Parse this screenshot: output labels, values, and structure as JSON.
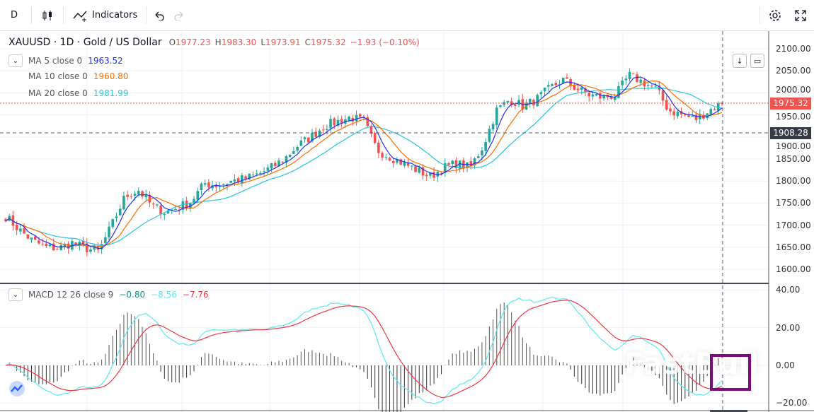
{
  "toolbar": {
    "interval": "D",
    "indicators_label": "Indicators"
  },
  "legend": {
    "symbol": "XAUUSD · 1D · Gold / US Dollar",
    "o_label": "O",
    "o": "1977.23",
    "h_label": "H",
    "h": "1983.30",
    "l_label": "L",
    "l": "1973.91",
    "c_label": "C",
    "c": "1975.32",
    "change": "−1.93 (−0.10%)",
    "ma": [
      {
        "label": "MA 5 close 0",
        "value": "1963.52",
        "color": "#2130f3"
      },
      {
        "label": "MA 10 close 0",
        "value": "1960.80",
        "color": "#ff6d00"
      },
      {
        "label": "MA 20 close 0",
        "value": "1981.99",
        "color": "#26c6da"
      }
    ],
    "macd": {
      "label": "MACD 12 26 close 9",
      "hist": "−0.80",
      "macd": "−8.56",
      "signal": "−7.76"
    }
  },
  "price_axis": {
    "ticks": [
      "2100.00",
      "2050.00",
      "2000.00",
      "1950.00",
      "1900.00",
      "1850.00",
      "1800.00",
      "1750.00",
      "1700.00",
      "1650.00",
      "1600.00"
    ],
    "last_price": "1975.32",
    "crosshair_price": "1908.28"
  },
  "macd_axis": {
    "ticks": [
      "40.00",
      "20.00",
      "0.00",
      "−20.00"
    ]
  },
  "colors": {
    "up": "#26a69a",
    "down": "#ef5350",
    "macd": "#00ffff",
    "signal": "#ff0000",
    "hist": "#089981",
    "last": "#ef5350"
  },
  "watermark": "FastBull",
  "chart_data": {
    "type": "candlestick",
    "symbol": "XAUUSD",
    "interval": "1D",
    "ylim": [
      1580,
      2120
    ],
    "approx_close_path": [
      1720,
      1690,
      1665,
      1650,
      1648,
      1660,
      1648,
      1640,
      1700,
      1765,
      1780,
      1745,
      1730,
      1740,
      1755,
      1795,
      1790,
      1800,
      1805,
      1815,
      1830,
      1850,
      1880,
      1900,
      1925,
      1935,
      1945,
      1935,
      1870,
      1855,
      1840,
      1825,
      1810,
      1830,
      1840,
      1830,
      1880,
      1960,
      1985,
      1970,
      1985,
      2010,
      2030,
      2010,
      1995,
      1990,
      1995,
      2040,
      2025,
      2010,
      1960,
      1950,
      1940,
      1960,
      1975.32
    ],
    "macd_ylim": [
      -22,
      42
    ],
    "grid": true
  }
}
